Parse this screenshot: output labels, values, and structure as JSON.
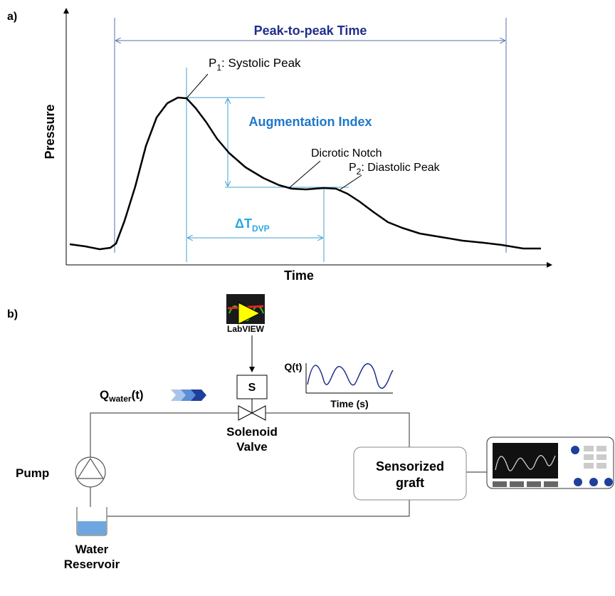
{
  "panel_a": {
    "label": "a)",
    "peak_to_peak": "Peak-to-peak Time",
    "p1": {
      "main": "P",
      "sub": "1",
      "rest": ": Systolic Peak"
    },
    "augmentation": "Augmentation Index",
    "notch": "Dicrotic Notch",
    "p2": {
      "main": "P",
      "sub": "2",
      "rest": ": Diastolic Peak"
    },
    "delta_t": {
      "main": "ΔT",
      "sub": "DVP"
    },
    "y_label": "Pressure",
    "x_label": "Time"
  },
  "panel_b": {
    "label": "b)",
    "software": "LabVIEW",
    "solenoid_symbol": "S",
    "signal_label": "Q(t)",
    "signal_axis": "Time (s)",
    "flow": {
      "main": "Q",
      "sub": "water",
      "rest": "(t)"
    },
    "valve": [
      "Solenoid",
      "Valve"
    ],
    "pump": "Pump",
    "graft": [
      "Sensorized",
      "graft"
    ],
    "reservoir": [
      "Water",
      "Reservoir"
    ]
  }
}
